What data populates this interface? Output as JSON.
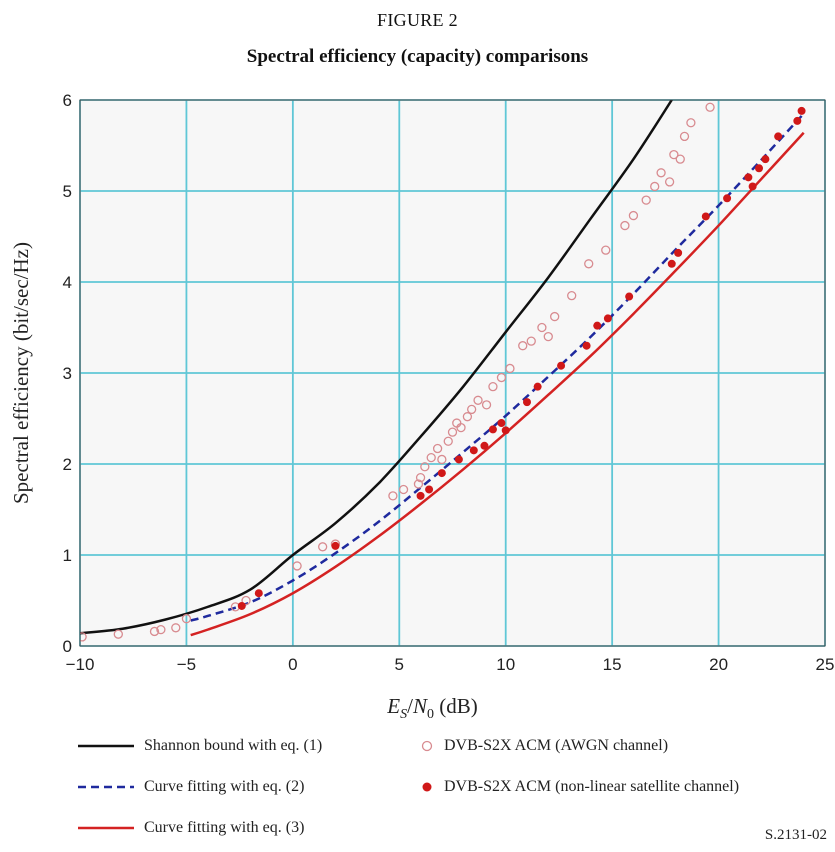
{
  "figure": {
    "label": "FIGURE 2",
    "title": "Spectral efficiency (capacity) comparisons",
    "doc_id": "S.2131-02"
  },
  "colors": {
    "shannon": "#111111",
    "fit2": "#1f2a9e",
    "fit3": "#d42222",
    "awgn": "#d88b90",
    "sat": "#d01818",
    "grid": "#5fc7d6",
    "plot_bg": "#f7f7f7"
  },
  "chart_data": {
    "type": "line",
    "title": "",
    "xlabel": {
      "e": "E",
      "e_sub": "S",
      "slash": "/",
      "n": "N",
      "n_sub": "0",
      "unit": " (dB)"
    },
    "ylabel": "Spectral efficiency (bit/sec/Hz)",
    "xlim": [
      -10,
      25
    ],
    "ylim": [
      0,
      6
    ],
    "xticks": [
      {
        "v": -10,
        "label": "−10"
      },
      {
        "v": -5,
        "label": "−5"
      },
      {
        "v": 0,
        "label": "0"
      },
      {
        "v": 5,
        "label": "5"
      },
      {
        "v": 10,
        "label": "10"
      },
      {
        "v": 15,
        "label": "15"
      },
      {
        "v": 20,
        "label": "20"
      },
      {
        "v": 25,
        "label": "25"
      }
    ],
    "yticks": [
      {
        "v": 0,
        "label": "0"
      },
      {
        "v": 1,
        "label": "1"
      },
      {
        "v": 2,
        "label": "2"
      },
      {
        "v": 3,
        "label": "3"
      },
      {
        "v": 4,
        "label": "4"
      },
      {
        "v": 5,
        "label": "5"
      },
      {
        "v": 6,
        "label": "6"
      }
    ],
    "grid": true,
    "legend_position": "bottom",
    "series": [
      {
        "name": "Shannon bound with eq. (1)",
        "kind": "line",
        "style": "solid",
        "color_key": "shannon",
        "x": [
          -10,
          -8,
          -6,
          -4,
          -2,
          0,
          2,
          4,
          6,
          8,
          10,
          12,
          14,
          16,
          17.8
        ],
        "y": [
          0.14,
          0.19,
          0.29,
          0.43,
          0.62,
          1.0,
          1.35,
          1.78,
          2.3,
          2.85,
          3.45,
          4.05,
          4.7,
          5.35,
          6.0
        ]
      },
      {
        "name": "Curve fitting with eq. (2)",
        "kind": "line",
        "style": "dashed",
        "color_key": "fit2",
        "x": [
          -4.8,
          -4,
          -2,
          0,
          2,
          4,
          6,
          8,
          10,
          12,
          14,
          16,
          18,
          20,
          22,
          24
        ],
        "y": [
          0.28,
          0.33,
          0.48,
          0.72,
          1.02,
          1.36,
          1.74,
          2.13,
          2.53,
          2.96,
          3.4,
          3.87,
          4.36,
          4.84,
          5.34,
          5.85
        ]
      },
      {
        "name": "Curve fitting with eq. (3)",
        "kind": "line",
        "style": "solid",
        "color_key": "fit3",
        "x": [
          -4.8,
          -4,
          -2,
          0,
          2,
          4,
          6,
          8,
          10,
          12,
          14,
          16,
          18,
          20,
          22,
          24
        ],
        "y": [
          0.12,
          0.18,
          0.35,
          0.58,
          0.87,
          1.2,
          1.56,
          1.94,
          2.34,
          2.76,
          3.19,
          3.65,
          4.13,
          4.62,
          5.13,
          5.64
        ]
      },
      {
        "name": "DVB-S2X ACM (AWGN channel)",
        "kind": "scatter",
        "marker": "open-circle",
        "color_key": "awgn",
        "x": [
          -9.9,
          -8.2,
          -6.5,
          -6.2,
          -5.5,
          -5.0,
          -2.7,
          -2.2,
          0.2,
          1.4,
          2.0,
          4.7,
          5.2,
          5.9,
          6.0,
          6.2,
          6.5,
          6.8,
          7.0,
          7.3,
          7.5,
          7.7,
          7.9,
          8.2,
          8.4,
          8.7,
          9.1,
          9.4,
          9.8,
          10.2,
          10.8,
          11.2,
          11.7,
          12.0,
          12.3,
          13.1,
          13.9,
          14.7,
          15.6,
          16.0,
          16.6,
          17.0,
          17.3,
          17.7,
          17.9,
          18.2,
          18.4,
          18.7,
          19.6
        ],
        "y": [
          0.1,
          0.13,
          0.16,
          0.18,
          0.2,
          0.3,
          0.43,
          0.5,
          0.88,
          1.09,
          1.12,
          1.65,
          1.72,
          1.78,
          1.85,
          1.97,
          2.07,
          2.17,
          2.05,
          2.25,
          2.35,
          2.45,
          2.4,
          2.52,
          2.6,
          2.7,
          2.65,
          2.85,
          2.95,
          3.05,
          3.3,
          3.35,
          3.5,
          3.4,
          3.62,
          3.85,
          4.2,
          4.35,
          4.62,
          4.73,
          4.9,
          5.05,
          5.2,
          5.1,
          5.4,
          5.35,
          5.6,
          5.75,
          5.92
        ]
      },
      {
        "name": "DVB-S2X ACM (non-linear satellite channel)",
        "kind": "scatter",
        "marker": "filled-circle",
        "color_key": "sat",
        "x": [
          -2.4,
          -1.6,
          2.0,
          6.0,
          6.4,
          7.0,
          7.8,
          8.5,
          9.0,
          9.4,
          9.8,
          10.0,
          11.0,
          11.5,
          12.6,
          13.8,
          14.3,
          14.8,
          15.8,
          17.8,
          18.1,
          19.4,
          20.4,
          21.4,
          21.6,
          21.9,
          22.2,
          22.8,
          23.7,
          23.9
        ],
        "y": [
          0.44,
          0.58,
          1.1,
          1.65,
          1.72,
          1.9,
          2.05,
          2.15,
          2.2,
          2.38,
          2.45,
          2.37,
          2.68,
          2.85,
          3.08,
          3.3,
          3.52,
          3.6,
          3.84,
          4.2,
          4.32,
          4.72,
          4.92,
          5.15,
          5.05,
          5.25,
          5.35,
          5.6,
          5.77,
          5.88
        ]
      }
    ]
  }
}
